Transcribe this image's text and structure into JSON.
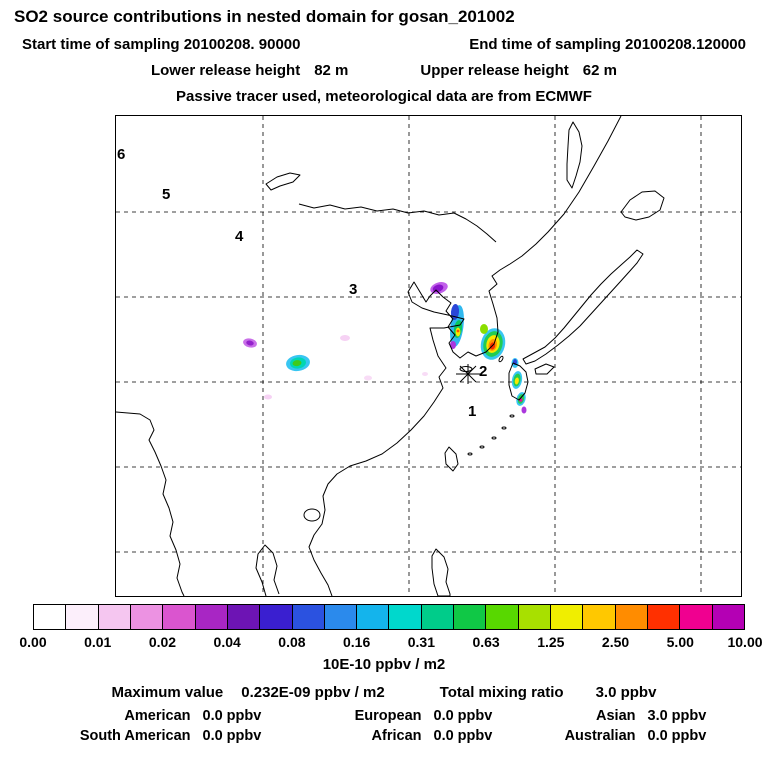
{
  "header": {
    "title": "SO2 source contributions in nested domain for gosan_201002",
    "start_time": "Start time of sampling 20100208. 90000",
    "end_time": "End time of sampling 20100208.120000",
    "lower_release_label": "Lower release height",
    "lower_release_value": "82 m",
    "upper_release_label": "Upper release height",
    "upper_release_value": "62 m",
    "tracer_note": "Passive tracer used, meteorological data are from ECMWF"
  },
  "map": {
    "region_numbers": [
      "6",
      "5",
      "4",
      "3",
      "2",
      "1"
    ]
  },
  "colorbar": {
    "units": "10E-10 ppbv / m2",
    "tick_labels": [
      "0.00",
      "0.01",
      "0.02",
      "0.04",
      "0.08",
      "0.16",
      "0.31",
      "0.63",
      "1.25",
      "2.50",
      "5.00",
      "10.00"
    ],
    "colors": [
      "#ffffff",
      "#fceffb",
      "#f5c6f0",
      "#ec92e2",
      "#da55cf",
      "#a826c4",
      "#6d14b4",
      "#3a1fd0",
      "#2b52e0",
      "#2b8aec",
      "#14b4ec",
      "#00d8cc",
      "#00cc8a",
      "#10c846",
      "#58d800",
      "#a8e000",
      "#f0ee00",
      "#ffc800",
      "#ff8c00",
      "#ff3000",
      "#f00090",
      "#b400b4"
    ]
  },
  "stats": {
    "max_label": "Maximum value",
    "max_value": "0.232E-09 ppbv / m2",
    "mixing_label": "Total mixing ratio",
    "mixing_value": "3.0 ppbv",
    "continents": [
      {
        "label": "American",
        "value": "0.0 ppbv"
      },
      {
        "label": "European",
        "value": "0.0 ppbv"
      },
      {
        "label": "Asian",
        "value": "3.0 ppbv"
      },
      {
        "label": "South American",
        "value": "0.0 ppbv"
      },
      {
        "label": "African",
        "value": "0.0 ppbv"
      },
      {
        "label": "Australian",
        "value": "0.0 ppbv"
      }
    ]
  },
  "chart_data": {
    "type": "heatmap",
    "title": "SO2 source contributions in nested domain for gosan_201002",
    "receptor_site": "gosan",
    "colorbar_tick_values": [
      0.0,
      0.01,
      0.02,
      0.04,
      0.08,
      0.16,
      0.31,
      0.63,
      1.25,
      2.5,
      5.0,
      10.0
    ],
    "colorbar_units": "10E-10 ppbv / m2",
    "maximum_value": "0.232E-09 ppbv / m2",
    "total_mixing_ratio": "3.0 ppbv",
    "region_numbers": [
      1,
      2,
      3,
      4,
      5,
      6
    ],
    "contributions_ppbv": {
      "American": 0.0,
      "European": 0.0,
      "Asian": 3.0,
      "South American": 0.0,
      "African": 0.0,
      "Australian": 0.0
    }
  }
}
